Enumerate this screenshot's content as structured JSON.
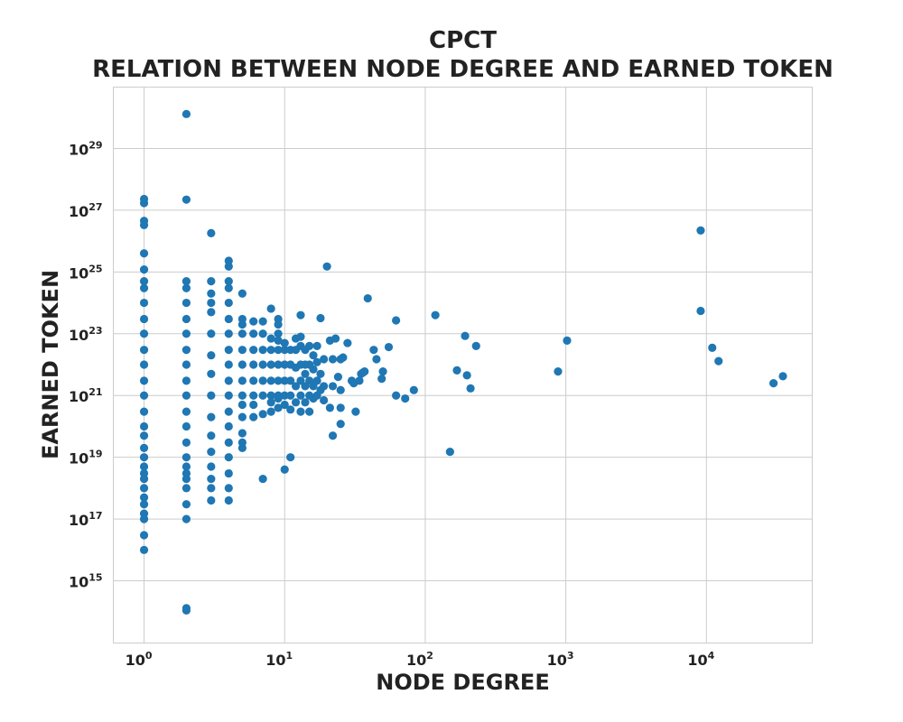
{
  "chart_data": {
    "type": "scatter",
    "title": "CPCT",
    "subtitle": "RELATION BETWEEN NODE DEGREE AND EARNED TOKEN",
    "xlabel": "NODE DEGREE",
    "ylabel": "EARNED TOKEN",
    "x_scale": "log",
    "y_scale": "log",
    "xlim": [
      0.6,
      57000
    ],
    "ylim": [
      10000000000000.0,
      1e+31
    ],
    "x_ticks": [
      {
        "base": "10",
        "exp": "0",
        "value": 1
      },
      {
        "base": "10",
        "exp": "1",
        "value": 10
      },
      {
        "base": "10",
        "exp": "2",
        "value": 100
      },
      {
        "base": "10",
        "exp": "3",
        "value": 1000
      },
      {
        "base": "10",
        "exp": "4",
        "value": 10000
      }
    ],
    "y_ticks": [
      {
        "base": "10",
        "exp": "15",
        "value": 1000000000000000.0
      },
      {
        "base": "10",
        "exp": "17",
        "value": 1e+17
      },
      {
        "base": "10",
        "exp": "19",
        "value": 1e+19
      },
      {
        "base": "10",
        "exp": "21",
        "value": 1e+21
      },
      {
        "base": "10",
        "exp": "23",
        "value": 1e+23
      },
      {
        "base": "10",
        "exp": "25",
        "value": 1e+25
      },
      {
        "base": "10",
        "exp": "27",
        "value": 1e+27
      },
      {
        "base": "10",
        "exp": "29",
        "value": 1e+29
      }
    ],
    "grid": true,
    "marker_color": "#1f77b4",
    "series": [
      {
        "points": [
          [
            1,
            1e+16
          ],
          [
            1,
            3e+16
          ],
          [
            1,
            1e+17
          ],
          [
            1,
            1.5e+17
          ],
          [
            1,
            3e+17
          ],
          [
            1,
            5e+17
          ],
          [
            1,
            1e+18
          ],
          [
            1,
            2e+18
          ],
          [
            1,
            3e+18
          ],
          [
            1,
            5e+18
          ],
          [
            1,
            1e+19
          ],
          [
            1,
            2e+19
          ],
          [
            1,
            5e+19
          ],
          [
            1,
            1e+20
          ],
          [
            1,
            3e+20
          ],
          [
            1,
            1e+21
          ],
          [
            1,
            3e+21
          ],
          [
            1,
            1e+22
          ],
          [
            1,
            3e+22
          ],
          [
            1,
            1e+23
          ],
          [
            1,
            3e+23
          ],
          [
            1,
            1e+24
          ],
          [
            1,
            3e+24
          ],
          [
            1,
            5e+24
          ],
          [
            1,
            1.2e+25
          ],
          [
            1,
            4e+25
          ],
          [
            1,
            3.3e+26
          ],
          [
            1,
            4.5e+26
          ],
          [
            1,
            1.7e+27
          ],
          [
            1,
            2.3e+27
          ],
          [
            2,
            130000000000000.0
          ],
          [
            2,
            110000000000000.0
          ],
          [
            2,
            1e+17
          ],
          [
            2,
            3e+17
          ],
          [
            2,
            1e+18
          ],
          [
            2,
            2e+18
          ],
          [
            2,
            3e+18
          ],
          [
            2,
            5e+18
          ],
          [
            2,
            1e+19
          ],
          [
            2,
            3e+19
          ],
          [
            2,
            1e+20
          ],
          [
            2,
            3e+20
          ],
          [
            2,
            1e+21
          ],
          [
            2,
            3e+21
          ],
          [
            2,
            1e+22
          ],
          [
            2,
            3e+22
          ],
          [
            2,
            1e+23
          ],
          [
            2,
            3e+23
          ],
          [
            2,
            1e+24
          ],
          [
            2,
            3e+24
          ],
          [
            2,
            5e+24
          ],
          [
            2,
            2.2e+27
          ],
          [
            2,
            1.3e+30
          ],
          [
            3,
            4e+17
          ],
          [
            3,
            1e+18
          ],
          [
            3,
            2e+18
          ],
          [
            3,
            5e+18
          ],
          [
            3,
            1.5e+19
          ],
          [
            3,
            5e+19
          ],
          [
            3,
            2e+20
          ],
          [
            3,
            1e+21
          ],
          [
            3,
            5e+21
          ],
          [
            3,
            2e+22
          ],
          [
            3,
            1e+23
          ],
          [
            3,
            5e+23
          ],
          [
            3,
            1e+24
          ],
          [
            3,
            2e+24
          ],
          [
            3,
            5e+24
          ],
          [
            3,
            1.8e+26
          ],
          [
            4,
            4e+17
          ],
          [
            4,
            1e+18
          ],
          [
            4,
            3e+18
          ],
          [
            4,
            1e+19
          ],
          [
            4,
            3e+19
          ],
          [
            4,
            1e+20
          ],
          [
            4,
            3e+20
          ],
          [
            4,
            1e+21
          ],
          [
            4,
            3e+21
          ],
          [
            4,
            1e+22
          ],
          [
            4,
            3e+22
          ],
          [
            4,
            1e+23
          ],
          [
            4,
            3e+23
          ],
          [
            4,
            1e+24
          ],
          [
            4,
            3e+24
          ],
          [
            4,
            5e+24
          ],
          [
            4,
            1.5e+25
          ],
          [
            4,
            2.3e+25
          ],
          [
            5,
            2e+19
          ],
          [
            5,
            3e+19
          ],
          [
            5,
            6e+19
          ],
          [
            5,
            2e+20
          ],
          [
            5,
            5e+20
          ],
          [
            5,
            1e+21
          ],
          [
            5,
            3e+21
          ],
          [
            5,
            1e+22
          ],
          [
            5,
            3e+22
          ],
          [
            5,
            1e+23
          ],
          [
            5,
            2e+23
          ],
          [
            5,
            3e+23
          ],
          [
            5,
            2e+24
          ],
          [
            6,
            2e+20
          ],
          [
            6,
            5e+20
          ],
          [
            6,
            1e+21
          ],
          [
            6,
            3e+21
          ],
          [
            6,
            1e+22
          ],
          [
            6,
            3e+22
          ],
          [
            6,
            1e+23
          ],
          [
            6,
            2.5e+23
          ],
          [
            7,
            2e+18
          ],
          [
            7,
            2.5e+20
          ],
          [
            7,
            1e+21
          ],
          [
            7,
            3e+21
          ],
          [
            7,
            1e+22
          ],
          [
            7,
            3e+22
          ],
          [
            7,
            1e+23
          ],
          [
            7,
            2.5e+23
          ],
          [
            8,
            3e+20
          ],
          [
            8,
            6e+20
          ],
          [
            8,
            1e+21
          ],
          [
            8,
            3e+21
          ],
          [
            8,
            1e+22
          ],
          [
            8,
            3e+22
          ],
          [
            8,
            7e+22
          ],
          [
            8,
            6.5e+23
          ],
          [
            9,
            4e+20
          ],
          [
            9,
            8e+20
          ],
          [
            9,
            1e+21
          ],
          [
            9,
            3e+21
          ],
          [
            9,
            1e+22
          ],
          [
            9,
            3e+22
          ],
          [
            9,
            6e+22
          ],
          [
            9,
            1e+23
          ],
          [
            9,
            2e+23
          ],
          [
            9,
            3e+23
          ],
          [
            10,
            4e+18
          ],
          [
            10,
            5e+20
          ],
          [
            10,
            1e+21
          ],
          [
            10,
            3e+21
          ],
          [
            10,
            1e+22
          ],
          [
            10,
            3e+22
          ],
          [
            10,
            5e+22
          ],
          [
            11,
            1e+19
          ],
          [
            11,
            3.5e+20
          ],
          [
            11,
            1e+21
          ],
          [
            11,
            3e+21
          ],
          [
            11,
            1e+22
          ],
          [
            11,
            3e+22
          ],
          [
            12,
            6e+20
          ],
          [
            12,
            2e+21
          ],
          [
            12,
            8e+21
          ],
          [
            12,
            3e+22
          ],
          [
            12,
            7e+22
          ],
          [
            13,
            3e+20
          ],
          [
            13,
            1e+21
          ],
          [
            13,
            3e+21
          ],
          [
            13,
            1e+22
          ],
          [
            13,
            4e+22
          ],
          [
            13,
            8e+22
          ],
          [
            13,
            4e+23
          ],
          [
            14,
            6e+20
          ],
          [
            14,
            2e+21
          ],
          [
            14,
            5e+21
          ],
          [
            14,
            1e+22
          ],
          [
            14,
            3e+22
          ],
          [
            15,
            3e+20
          ],
          [
            15,
            1e+21
          ],
          [
            15,
            3e+21
          ],
          [
            15,
            1e+22
          ],
          [
            15,
            4e+22
          ],
          [
            16,
            8e+20
          ],
          [
            16,
            2e+21
          ],
          [
            16,
            7e+21
          ],
          [
            16,
            2e+22
          ],
          [
            17,
            1e+21
          ],
          [
            17,
            3e+21
          ],
          [
            17,
            1.2e+22
          ],
          [
            17,
            4e+22
          ],
          [
            18,
            1.5e+21
          ],
          [
            18,
            5e+21
          ],
          [
            18,
            3.2e+23
          ],
          [
            19,
            7e+20
          ],
          [
            19,
            2e+21
          ],
          [
            19,
            1.5e+22
          ],
          [
            20,
            1.5e+25
          ],
          [
            21,
            4e+20
          ],
          [
            21,
            6e+22
          ],
          [
            22,
            5e+19
          ],
          [
            22,
            2e+21
          ],
          [
            22,
            1.5e+22
          ],
          [
            23,
            7e+22
          ],
          [
            24,
            4e+21
          ],
          [
            25,
            1.2e+20
          ],
          [
            25,
            4e+20
          ],
          [
            25,
            1.5e+21
          ],
          [
            25,
            1.5e+22
          ],
          [
            26,
            1.7e+22
          ],
          [
            28,
            5e+22
          ],
          [
            30,
            3e+21
          ],
          [
            31,
            2.5e+21
          ],
          [
            32,
            3e+20
          ],
          [
            34,
            3e+21
          ],
          [
            35,
            5e+21
          ],
          [
            36,
            5.5e+21
          ],
          [
            37,
            6e+21
          ],
          [
            39,
            1.4e+24
          ],
          [
            43,
            3e+22
          ],
          [
            45,
            1.5e+22
          ],
          [
            49,
            3.5e+21
          ],
          [
            50,
            6e+21
          ],
          [
            55,
            3.7e+22
          ],
          [
            62,
            1e+21
          ],
          [
            62,
            2.7e+23
          ],
          [
            72,
            8e+20
          ],
          [
            83,
            1.5e+21
          ],
          [
            118,
            4e+23
          ],
          [
            150,
            1.5e+19
          ],
          [
            168,
            6.5e+21
          ],
          [
            192,
            8.5e+22
          ],
          [
            198,
            4.5e+21
          ],
          [
            210,
            1.7e+21
          ],
          [
            230,
            4e+22
          ],
          [
            880,
            6e+21
          ],
          [
            1020,
            6e+22
          ],
          [
            9100,
            2.2e+26
          ],
          [
            9100,
            5.5e+23
          ],
          [
            11000,
            3.5e+22
          ],
          [
            12200,
            1.3e+22
          ],
          [
            30000,
            2.5e+21
          ],
          [
            35000,
            4.2e+21
          ]
        ]
      }
    ]
  }
}
